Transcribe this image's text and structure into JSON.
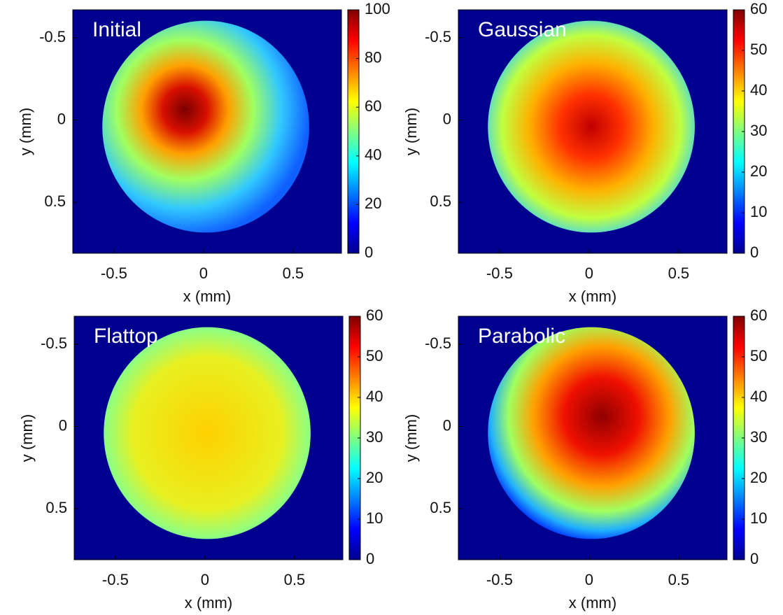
{
  "chart_data": [
    {
      "type": "heatmap",
      "title": "Initial",
      "xlabel": "x (mm)",
      "ylabel": "y (mm)",
      "xlim": [
        -0.73,
        0.77
      ],
      "ylim": [
        0.81,
        -0.67
      ],
      "xticks": [
        -0.5,
        0,
        0.5
      ],
      "yticks": [
        -0.5,
        0,
        0.5
      ],
      "colormap": "jet",
      "clim": [
        0,
        100
      ],
      "cticks": [
        0,
        20,
        40,
        60,
        80,
        100
      ]
    },
    {
      "type": "heatmap",
      "title": "Gaussian",
      "xlabel": "x (mm)",
      "ylabel": "y (mm)",
      "xlim": [
        -0.73,
        0.77
      ],
      "ylim": [
        0.81,
        -0.67
      ],
      "xticks": [
        -0.5,
        0,
        0.5
      ],
      "yticks": [
        -0.5,
        0,
        0.5
      ],
      "colormap": "jet",
      "clim": [
        0,
        60
      ],
      "cticks": [
        0,
        10,
        20,
        30,
        40,
        50,
        60
      ]
    },
    {
      "type": "heatmap",
      "title": "Flattop",
      "xlabel": "x (mm)",
      "ylabel": "y (mm)",
      "xlim": [
        -0.73,
        0.77
      ],
      "ylim": [
        0.81,
        -0.67
      ],
      "xticks": [
        -0.5,
        0,
        0.5
      ],
      "yticks": [
        -0.5,
        0,
        0.5
      ],
      "colormap": "jet",
      "clim": [
        0,
        60
      ],
      "cticks": [
        0,
        10,
        20,
        30,
        40,
        50,
        60
      ]
    },
    {
      "type": "heatmap",
      "title": "Parabolic",
      "xlabel": "x (mm)",
      "ylabel": "y (mm)",
      "xlim": [
        -0.73,
        0.77
      ],
      "ylim": [
        0.81,
        -0.67
      ],
      "xticks": [
        -0.5,
        0,
        0.5
      ],
      "yticks": [
        -0.5,
        0,
        0.5
      ],
      "colormap": "jet",
      "clim": [
        0,
        60
      ],
      "cticks": [
        0,
        10,
        20,
        30,
        40,
        50,
        60
      ]
    }
  ]
}
